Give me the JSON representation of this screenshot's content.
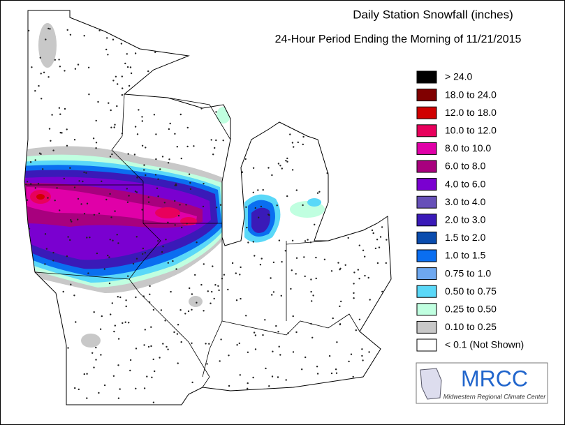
{
  "title": "Daily Station Snowfall (inches)",
  "subtitle": "24-Hour Period Ending the Morning of 11/21/2015",
  "legend": {
    "items": [
      {
        "label": "> 24.0",
        "color": "#000000"
      },
      {
        "label": "18.0 to 24.0",
        "color": "#800000"
      },
      {
        "label": "12.0 to 18.0",
        "color": "#d00000"
      },
      {
        "label": "10.0 to 12.0",
        "color": "#e8005c"
      },
      {
        "label": "8.0 to 10.0",
        "color": "#e000a8"
      },
      {
        "label": "6.0 to 8.0",
        "color": "#a8007e"
      },
      {
        "label": "4.0 to 6.0",
        "color": "#7a00d0"
      },
      {
        "label": "3.0 to 4.0",
        "color": "#6650b8"
      },
      {
        "label": "2.0 to 3.0",
        "color": "#3a1ab8"
      },
      {
        "label": "1.5 to 2.0",
        "color": "#0a4cae"
      },
      {
        "label": "1.0 to 1.5",
        "color": "#0a6ef0"
      },
      {
        "label": "0.75 to 1.0",
        "color": "#6ea8f0"
      },
      {
        "label": "0.50 to 0.75",
        "color": "#5ad8f8"
      },
      {
        "label": "0.25 to 0.50",
        "color": "#c0ffe0"
      },
      {
        "label": "0.10 to 0.25",
        "color": "#c8c8c8"
      },
      {
        "label": "< 0.1 (Not Shown)",
        "color": "#ffffff"
      }
    ]
  },
  "logo": {
    "name": "MRCC",
    "full_name": "Midwestern Regional Climate Center"
  }
}
